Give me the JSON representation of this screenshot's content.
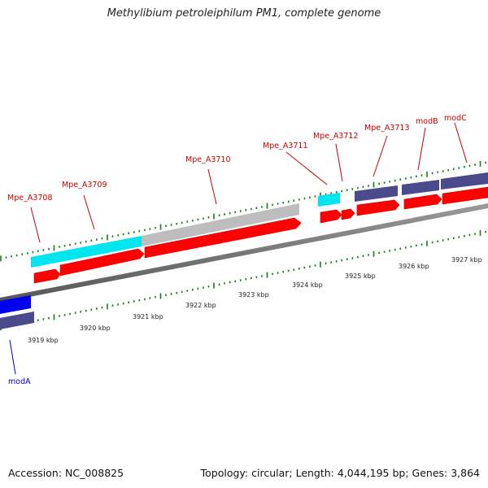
{
  "title": "Methylibium petroleiphilum PM1, complete genome",
  "footer": {
    "accession": "Accession: NC_008825",
    "stats": "Topology: circular; Length: 4,044,195 bp; Genes: 3,864"
  },
  "colors": {
    "cds": "#ff0000",
    "gene_label": "#cc0000",
    "gene_cyan": "#00e5ee",
    "gene_grey": "#bdbdbd",
    "gene_navy": "#4a4a8c",
    "gene_blue": "#0000ee",
    "label_blue": "#0000cc",
    "backbone": "#777777",
    "tick": "#1a7a1a"
  },
  "position_labels": [
    "3919 kbp",
    "3920 kbp",
    "3921 kbp",
    "3922 kbp",
    "3923 kbp",
    "3924 kbp",
    "3925 kbp",
    "3926 kbp",
    "3927 kbp"
  ],
  "genes": [
    {
      "name": "modA",
      "color": "blue"
    },
    {
      "name": "Mpe_A3708",
      "color": "cyan"
    },
    {
      "name": "Mpe_A3709",
      "color": "cyan"
    },
    {
      "name": "Mpe_A3710",
      "color": "grey"
    },
    {
      "name": "Mpe_A3711",
      "color": "cyan"
    },
    {
      "name": "Mpe_A3712",
      "color": "cyan"
    },
    {
      "name": "Mpe_A3713",
      "color": "navy"
    },
    {
      "name": "modB",
      "color": "navy"
    },
    {
      "name": "modC",
      "color": "navy"
    }
  ]
}
